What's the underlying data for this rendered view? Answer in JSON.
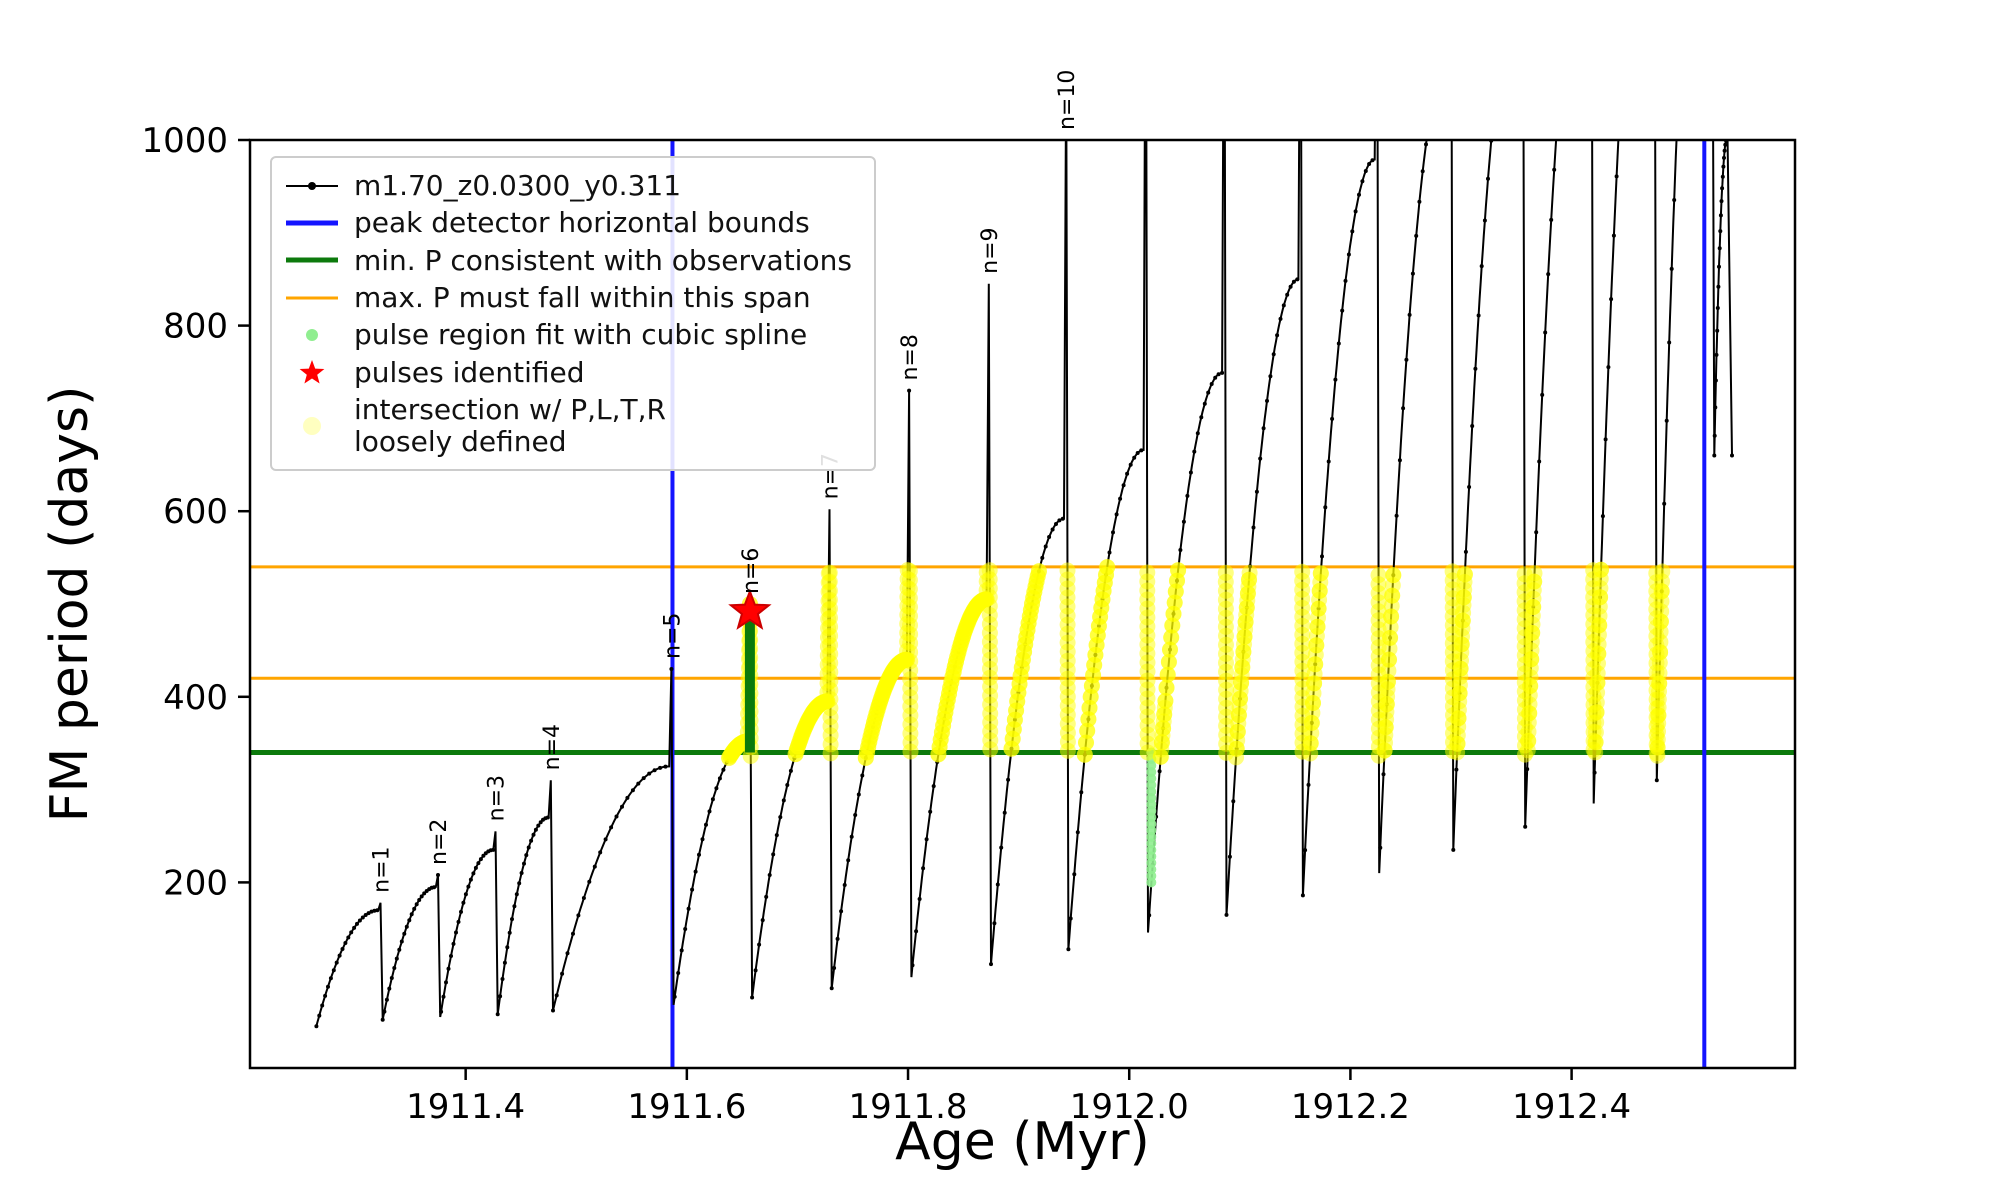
{
  "figure": {
    "background": "#ffffff"
  },
  "chart_data": {
    "type": "line",
    "title": "",
    "xlabel": "Age (Myr)",
    "ylabel": "FM period (days)",
    "xlim": [
      1911.205,
      1912.602
    ],
    "ylim": [
      0,
      1000
    ],
    "xticks": [
      "1911.4",
      "1911.6",
      "1911.8",
      "1912.0",
      "1912.2",
      "1912.4"
    ],
    "xtick_values": [
      1911.4,
      1911.6,
      1911.8,
      1912.0,
      1912.2,
      1912.4
    ],
    "yticks": [
      200,
      400,
      600,
      800,
      1000
    ],
    "grid": false,
    "series_label": "m1.70_z0.0300_y0.311",
    "peak_detector_bounds_x": [
      1911.587,
      1912.52
    ],
    "min_P": 340,
    "max_P_span": [
      420,
      540
    ],
    "pulses": [
      {
        "label": "n=1",
        "x0": 1911.265,
        "x1": 1911.325,
        "ymin": 45,
        "ymax": 170,
        "spike": 178
      },
      {
        "label": "n=2",
        "x0": 1911.325,
        "x1": 1911.377,
        "ymin": 52,
        "ymax": 195,
        "spike": 208
      },
      {
        "label": "n=3",
        "x0": 1911.377,
        "x1": 1911.429,
        "ymin": 55,
        "ymax": 235,
        "spike": 255
      },
      {
        "label": "n=4",
        "x0": 1911.429,
        "x1": 1911.479,
        "ymin": 58,
        "ymax": 270,
        "spike": 310
      },
      {
        "label": "n=5",
        "x0": 1911.479,
        "x1": 1911.588,
        "ymin": 62,
        "ymax": 325,
        "spike": 430
      },
      {
        "label": "n=6",
        "x0": 1911.588,
        "x1": 1911.659,
        "ymin": 68,
        "ymax": 352,
        "spike": 500
      },
      {
        "label": "n=7",
        "x0": 1911.659,
        "x1": 1911.731,
        "ymin": 76,
        "ymax": 395,
        "spike": 602
      },
      {
        "label": "n=8",
        "x0": 1911.731,
        "x1": 1911.803,
        "ymin": 86,
        "ymax": 440,
        "spike": 730
      },
      {
        "label": "n=9",
        "x0": 1911.803,
        "x1": 1911.875,
        "ymin": 98,
        "ymax": 505,
        "spike": 845
      },
      {
        "label": "n=10",
        "x0": 1911.875,
        "x1": 1911.945,
        "ymin": 112,
        "ymax": 592,
        "spike": 1090
      },
      {
        "label": null,
        "x0": 1911.945,
        "x1": 1912.017,
        "ymin": 128,
        "ymax": 666,
        "spike": 1300
      },
      {
        "label": null,
        "x0": 1912.017,
        "x1": 1912.088,
        "ymin": 146,
        "ymax": 749,
        "spike": 1300
      },
      {
        "label": null,
        "x0": 1912.088,
        "x1": 1912.157,
        "ymin": 165,
        "ymax": 850,
        "spike": 1300
      },
      {
        "label": null,
        "x0": 1912.157,
        "x1": 1912.226,
        "ymin": 186,
        "ymax": 979,
        "spike": 1300
      },
      {
        "label": null,
        "x0": 1912.226,
        "x1": 1912.293,
        "ymin": 210,
        "ymax": 1090,
        "spike": 1300
      },
      {
        "label": null,
        "x0": 1912.293,
        "x1": 1912.358,
        "ymin": 235,
        "ymax": 1180,
        "spike": 1300
      },
      {
        "label": null,
        "x0": 1912.358,
        "x1": 1912.42,
        "ymin": 260,
        "ymax": 1270,
        "spike": 1300
      },
      {
        "label": null,
        "x0": 1912.42,
        "x1": 1912.477,
        "ymin": 285,
        "ymax": 1360,
        "spike": 1300
      },
      {
        "label": null,
        "x0": 1912.477,
        "x1": 1912.529,
        "ymin": 310,
        "ymax": 1450,
        "spike": 1300
      },
      {
        "label": null,
        "x0": 1912.529,
        "x1": 1912.545,
        "ymin": 660,
        "ymax": 1005,
        "spike": null,
        "y_end": 660
      }
    ],
    "pulse_fit_column": {
      "x": 1911.657,
      "y0": 340,
      "y1": 482
    },
    "pulses_identified": [
      {
        "x": 1911.657,
        "y": 492
      }
    ],
    "spline_fit_dots": {
      "x": 1912.02,
      "y0": 200,
      "y1": 345
    },
    "colors": {
      "black": "#000000",
      "blue": "#1414ff",
      "green": "#0c7a0c",
      "orange": "#ffa500",
      "yellow": "#ffff00",
      "lightgreen": "#90ee90",
      "red": "#ff0000",
      "paleyellow": "#ffffc0"
    }
  },
  "legend": {
    "items": [
      {
        "symbol": "line-dot",
        "icon": "series-line-icon",
        "label": "m1.70_z0.0300_y0.311"
      },
      {
        "symbol": "line-blue",
        "icon": "bounds-line-icon",
        "label": "peak detector horizontal bounds"
      },
      {
        "symbol": "line-green",
        "icon": "min-p-line-icon",
        "label": "min. P consistent with observations"
      },
      {
        "symbol": "line-orange",
        "icon": "max-p-line-icon",
        "label": "max. P must fall within this span"
      },
      {
        "symbol": "dot-lightgreen",
        "icon": "spline-dot-icon",
        "label": "pulse region fit with cubic spline"
      },
      {
        "symbol": "star",
        "icon": "pulse-star-icon",
        "label": "pulses identified"
      },
      {
        "symbol": "dot-yellow",
        "icon": "intersection-dot-icon",
        "label": "intersection w/ P,L,T,R\nloosely defined"
      }
    ]
  }
}
